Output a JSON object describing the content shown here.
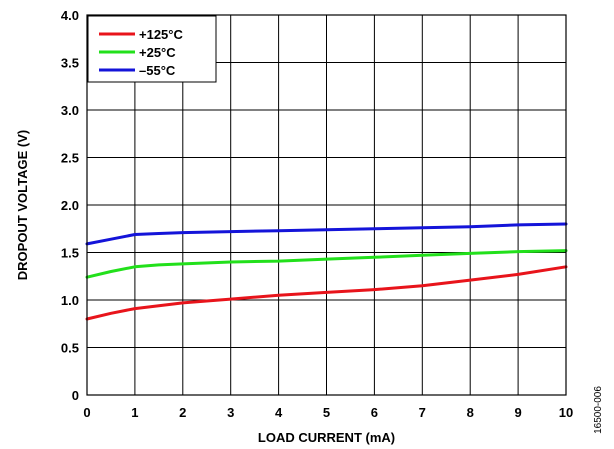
{
  "figure_id": "16500-006",
  "chart_data": {
    "type": "line",
    "title": "",
    "xlabel": "LOAD CURRENT (mA)",
    "ylabel": "DROPOUT VOLTAGE (V)",
    "xlim": [
      0,
      10
    ],
    "ylim": [
      0,
      4.0
    ],
    "x_ticks": [
      "0",
      "1",
      "2",
      "3",
      "4",
      "5",
      "6",
      "7",
      "8",
      "9",
      "10"
    ],
    "y_ticks": [
      "0",
      "0.5",
      "1.0",
      "1.5",
      "2.0",
      "2.5",
      "3.0",
      "3.5",
      "4.0"
    ],
    "grid": true,
    "legend_position": "top-left",
    "series": [
      {
        "name": "+125°C",
        "color": "#e8141b",
        "x": [
          0,
          0.5,
          1,
          1.5,
          2,
          3,
          4,
          5,
          6,
          7,
          8,
          9,
          10
        ],
        "y": [
          0.8,
          0.86,
          0.91,
          0.94,
          0.97,
          1.01,
          1.05,
          1.08,
          1.11,
          1.15,
          1.21,
          1.27,
          1.35
        ]
      },
      {
        "name": "+25°C",
        "color": "#22e01b",
        "x": [
          0,
          0.5,
          1,
          1.5,
          2,
          3,
          4,
          5,
          6,
          7,
          8,
          9,
          10
        ],
        "y": [
          1.24,
          1.3,
          1.35,
          1.37,
          1.38,
          1.4,
          1.41,
          1.43,
          1.45,
          1.47,
          1.49,
          1.51,
          1.52
        ]
      },
      {
        "name": "–55°C",
        "color": "#1414d9",
        "x": [
          0,
          0.5,
          1,
          1.5,
          2,
          3,
          4,
          5,
          6,
          7,
          8,
          9,
          10
        ],
        "y": [
          1.59,
          1.64,
          1.69,
          1.7,
          1.71,
          1.72,
          1.73,
          1.74,
          1.75,
          1.76,
          1.77,
          1.79,
          1.8
        ]
      }
    ]
  }
}
